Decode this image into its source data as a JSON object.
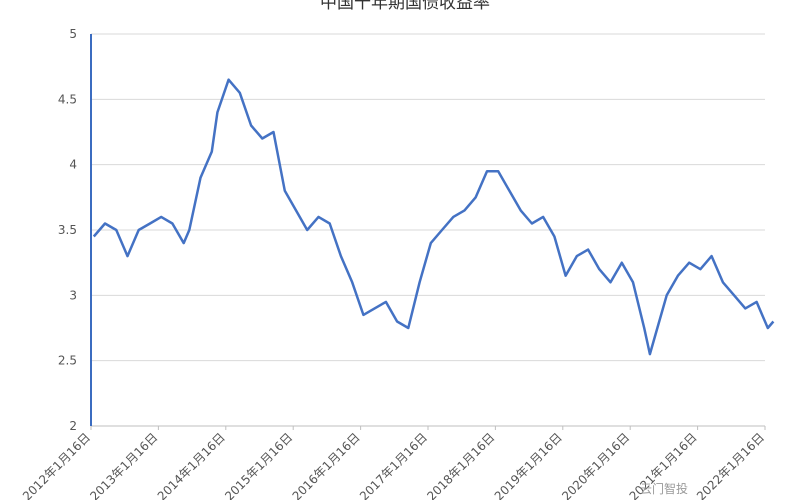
{
  "chart_data": {
    "type": "line",
    "title": "中国十年期国债收益率",
    "xlabel": "",
    "ylabel": "",
    "ylim": [
      2,
      5
    ],
    "yticks": [
      "2",
      "2.5",
      "3",
      "3.5",
      "4",
      "4.5",
      "5"
    ],
    "xticks": [
      "2012年1月16日",
      "2013年1月16日",
      "2014年1月16日",
      "2015年1月16日",
      "2016年1月16日",
      "2017年1月16日",
      "2018年1月16日",
      "2019年1月16日",
      "2020年1月16日",
      "2021年1月16日",
      "2022年1月16日"
    ],
    "grid": "horizontal",
    "legend": "none",
    "line_color": "#4472c4",
    "series": [
      {
        "x": [
          "2012-01",
          "2012-03",
          "2012-05",
          "2012-07",
          "2012-09",
          "2012-11",
          "2013-01",
          "2013-03",
          "2013-05",
          "2013-06",
          "2013-08",
          "2013-10",
          "2013-11",
          "2014-01",
          "2014-03",
          "2014-05",
          "2014-07",
          "2014-09",
          "2014-11",
          "2015-01",
          "2015-03",
          "2015-05",
          "2015-07",
          "2015-09",
          "2015-11",
          "2016-01",
          "2016-03",
          "2016-05",
          "2016-07",
          "2016-09",
          "2016-11",
          "2017-01",
          "2017-03",
          "2017-05",
          "2017-07",
          "2017-09",
          "2017-11",
          "2018-01",
          "2018-03",
          "2018-05",
          "2018-07",
          "2018-09",
          "2018-11",
          "2019-01",
          "2019-03",
          "2019-05",
          "2019-07",
          "2019-09",
          "2019-11",
          "2020-01",
          "2020-03",
          "2020-04",
          "2020-05",
          "2020-07",
          "2020-09",
          "2020-11",
          "2021-01",
          "2021-03",
          "2021-05",
          "2021-07",
          "2021-09",
          "2021-11",
          "2022-01",
          "2022-02"
        ],
        "y": [
          3.45,
          3.55,
          3.5,
          3.3,
          3.5,
          3.55,
          3.6,
          3.55,
          3.4,
          3.5,
          3.9,
          4.1,
          4.4,
          4.65,
          4.55,
          4.3,
          4.2,
          4.25,
          3.8,
          3.65,
          3.5,
          3.6,
          3.55,
          3.3,
          3.1,
          2.85,
          2.9,
          2.95,
          2.8,
          2.75,
          3.1,
          3.4,
          3.5,
          3.6,
          3.65,
          3.75,
          3.95,
          3.95,
          3.8,
          3.65,
          3.55,
          3.6,
          3.45,
          3.15,
          3.3,
          3.35,
          3.2,
          3.1,
          3.25,
          3.1,
          2.75,
          2.55,
          2.7,
          3.0,
          3.15,
          3.25,
          3.2,
          3.3,
          3.1,
          3.0,
          2.9,
          2.95,
          2.75,
          2.8
        ]
      }
    ]
  },
  "watermark": "云门智投"
}
